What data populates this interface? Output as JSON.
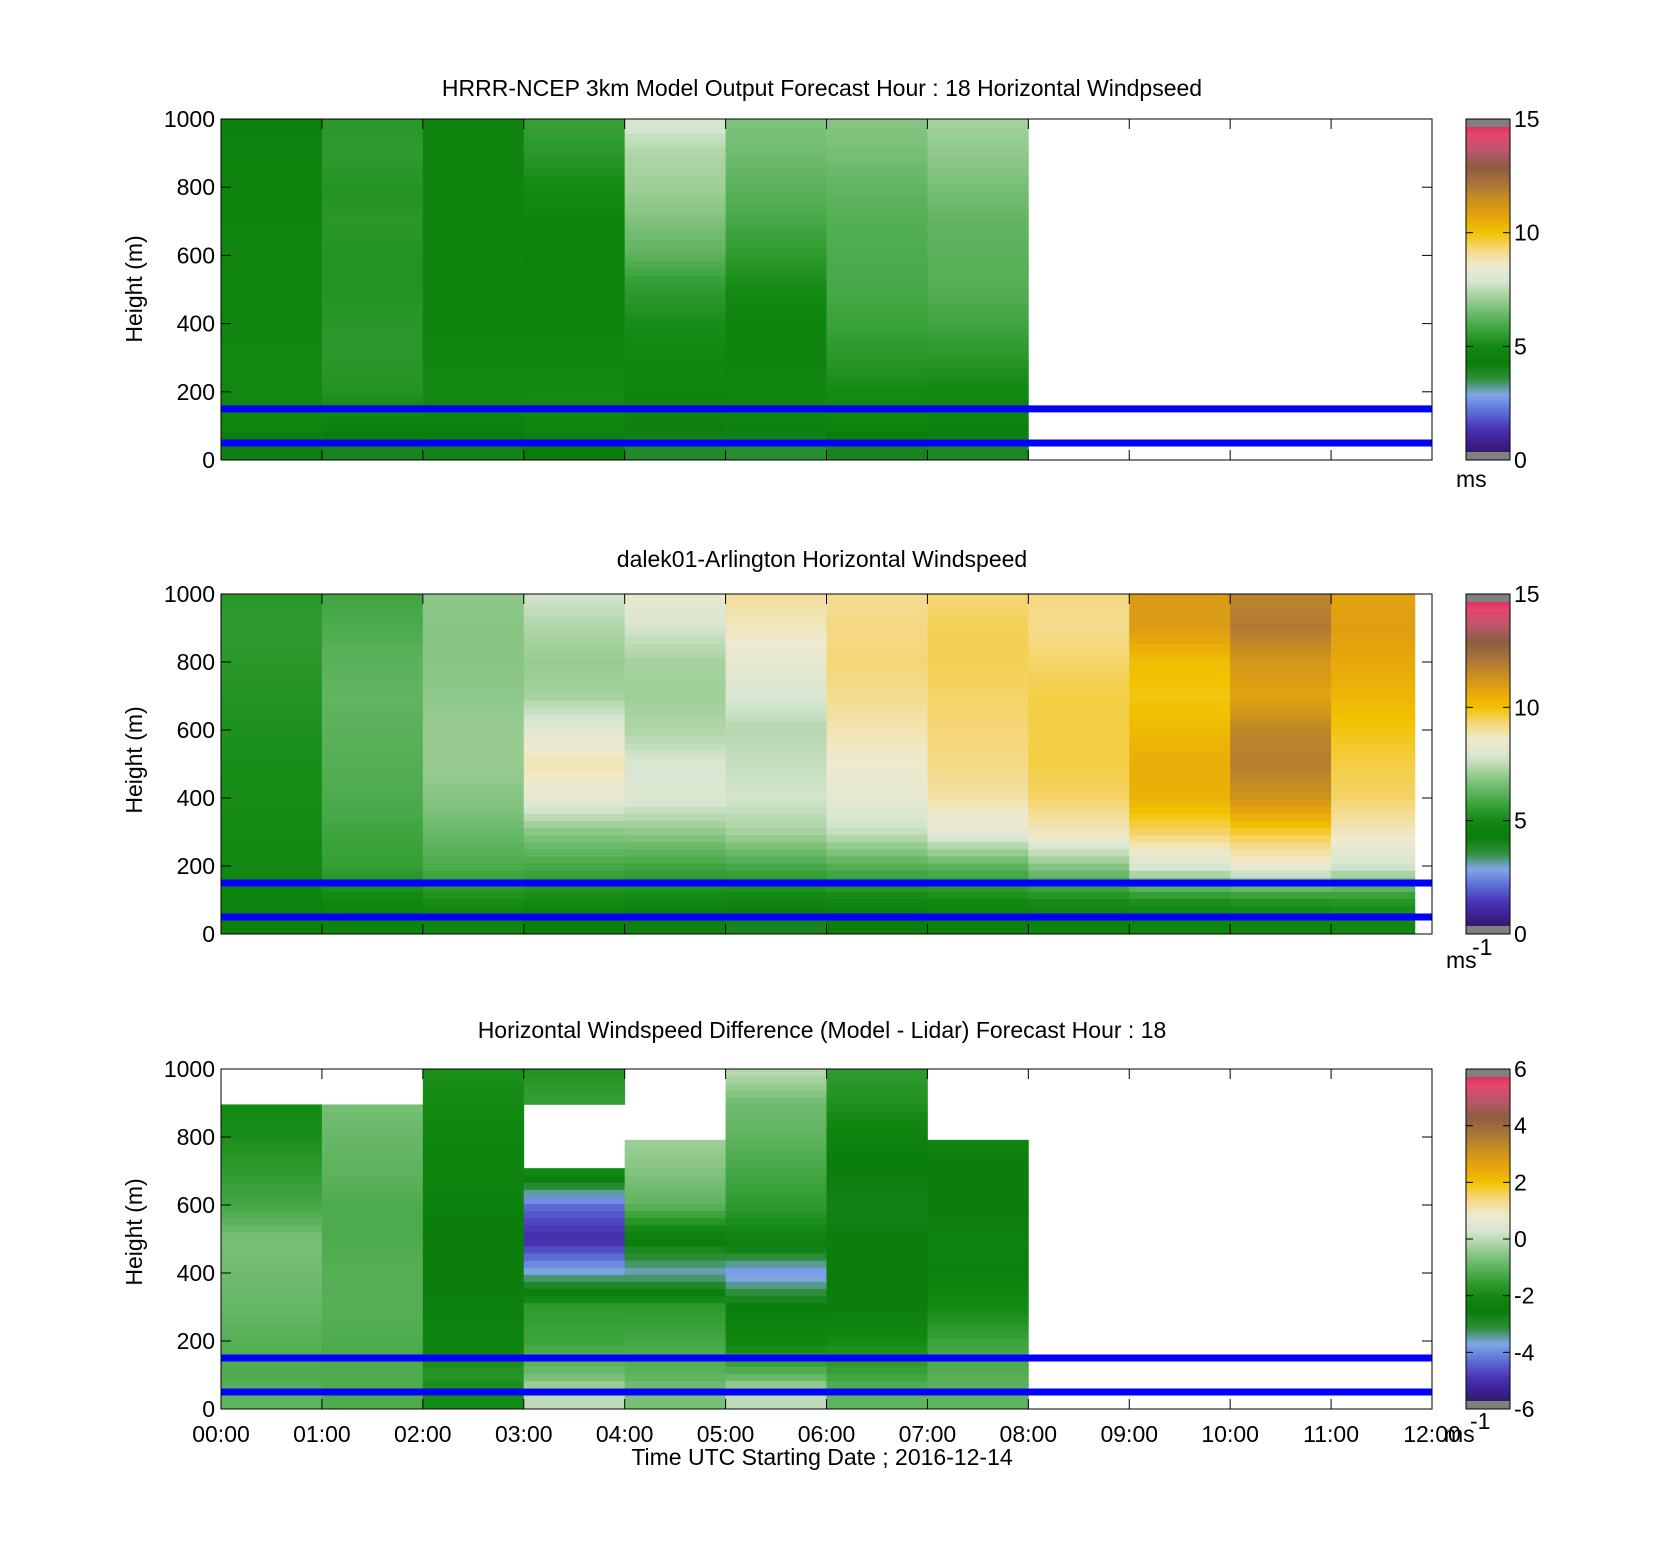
{
  "colors": {
    "ref_line": "#0000ff",
    "axis": "#000000",
    "no_data": "#ffffff"
  },
  "colormap_speed": [
    "#2a1b4a",
    "#3d1d8a",
    "#4a36b8",
    "#5c6fd6",
    "#7fa6e8",
    "#2f8f3a",
    "#0a7d0a",
    "#138a13",
    "#3aa23a",
    "#6ab96a",
    "#a2d09a",
    "#d8e6d3",
    "#efeacd",
    "#f5d77a",
    "#f2c200",
    "#e6a40d",
    "#c9901f",
    "#a9743a",
    "#8c5e3f",
    "#b8566a",
    "#e8456d",
    "#d31d52"
  ],
  "chart_data": [
    {
      "type": "heatmap",
      "title": "HRRR-NCEP 3km Model Output   Forecast Hour : 18 Horizontal Windpseed",
      "ylabel": "Height (m)",
      "xlabel": "",
      "x_range": [
        "00:00",
        "12:00"
      ],
      "ylim": [
        0,
        1000
      ],
      "yticks": [
        0,
        200,
        400,
        600,
        800,
        1000
      ],
      "xticks": [
        "00:00",
        "01:00",
        "02:00",
        "03:00",
        "04:00",
        "05:00",
        "06:00",
        "07:00",
        "08:00",
        "09:00",
        "10:00",
        "11:00",
        "12:00"
      ],
      "show_xticklabels": false,
      "colorbar": {
        "range": [
          0,
          15
        ],
        "ticks": [
          0,
          5,
          10,
          15
        ],
        "unit_label": "ms",
        "unit_sup": ""
      },
      "reference_lines_m": [
        50,
        150
      ],
      "data_hours": [
        0,
        8
      ],
      "height_levels_m": [
        50,
        100,
        200,
        300,
        400,
        500,
        600,
        700,
        800,
        900,
        1000
      ],
      "hourly_profiles": [
        [
          4.2,
          4.8,
          4.9,
          4.9,
          4.8,
          4.8,
          4.8,
          4.7,
          4.7,
          4.6,
          4.5
        ],
        [
          4.0,
          4.6,
          5.3,
          5.4,
          5.4,
          5.3,
          5.3,
          5.4,
          5.3,
          5.5,
          5.4
        ],
        [
          4.1,
          4.5,
          5.0,
          4.8,
          4.7,
          4.7,
          4.7,
          4.7,
          4.7,
          4.7,
          4.7
        ],
        [
          4.3,
          4.8,
          5.0,
          4.8,
          4.7,
          4.7,
          4.6,
          4.7,
          5.0,
          5.4,
          5.7
        ],
        [
          3.8,
          4.5,
          4.7,
          4.9,
          5.1,
          5.5,
          6.2,
          6.7,
          7.1,
          7.3,
          8.0
        ],
        [
          3.7,
          4.6,
          4.8,
          4.7,
          4.7,
          5.0,
          5.5,
          5.9,
          6.2,
          6.5,
          6.7
        ],
        [
          4.0,
          4.7,
          5.0,
          5.4,
          5.7,
          5.9,
          6.0,
          6.1,
          6.3,
          6.6,
          6.8
        ],
        [
          3.9,
          4.6,
          4.9,
          5.4,
          5.8,
          6.1,
          6.2,
          6.3,
          6.6,
          6.9,
          7.2
        ]
      ]
    },
    {
      "type": "heatmap",
      "title": "dalek01-Arlington  Horizontal Windspeed",
      "ylabel": "Height (m)",
      "xlabel": "",
      "x_range": [
        "00:00",
        "12:00"
      ],
      "ylim": [
        0,
        1000
      ],
      "yticks": [
        0,
        200,
        400,
        600,
        800,
        1000
      ],
      "xticks": [
        "00:00",
        "01:00",
        "02:00",
        "03:00",
        "04:00",
        "05:00",
        "06:00",
        "07:00",
        "08:00",
        "09:00",
        "10:00",
        "11:00",
        "12:00"
      ],
      "show_xticklabels": false,
      "colorbar": {
        "range": [
          0,
          15
        ],
        "ticks": [
          0,
          5,
          10,
          15
        ],
        "unit_label": "ms",
        "unit_sup": "-1"
      },
      "reference_lines_m": [
        50,
        150
      ],
      "data_hours": [
        0,
        11.83
      ],
      "height_levels_m": [
        50,
        100,
        200,
        300,
        400,
        500,
        600,
        700,
        800,
        900,
        1000
      ],
      "hourly_profiles": [
        [
          4.5,
          4.6,
          4.9,
          5.0,
          5.1,
          5.1,
          5.2,
          5.3,
          5.4,
          5.5,
          5.4
        ],
        [
          4.6,
          4.9,
          5.6,
          5.8,
          6.0,
          6.1,
          6.2,
          6.3,
          6.2,
          6.0,
          5.8
        ],
        [
          4.7,
          5.1,
          6.0,
          6.4,
          6.8,
          7.0,
          7.0,
          6.9,
          6.8,
          6.8,
          6.9
        ],
        [
          4.4,
          5.0,
          5.9,
          6.8,
          8.3,
          8.8,
          8.2,
          7.2,
          7.0,
          7.3,
          7.8
        ],
        [
          4.2,
          4.9,
          5.8,
          6.9,
          8.0,
          7.9,
          7.3,
          7.1,
          7.2,
          7.8,
          8.4
        ],
        [
          4.0,
          4.8,
          5.9,
          7.2,
          7.8,
          7.6,
          7.4,
          7.9,
          8.3,
          8.7,
          9.0
        ],
        [
          4.3,
          4.9,
          6.1,
          7.6,
          8.3,
          8.5,
          8.8,
          9.1,
          9.3,
          9.2,
          9.1
        ],
        [
          4.5,
          5.0,
          6.2,
          8.2,
          8.9,
          9.2,
          9.3,
          9.4,
          9.5,
          9.5,
          9.3
        ],
        [
          4.6,
          5.1,
          6.8,
          8.7,
          9.4,
          9.6,
          9.6,
          9.6,
          9.4,
          9.1,
          9.2
        ],
        [
          4.7,
          5.2,
          7.9,
          9.4,
          10.4,
          10.5,
          10.2,
          9.9,
          10.1,
          11.0,
          11.0
        ],
        [
          4.8,
          5.3,
          8.4,
          9.7,
          11.3,
          11.9,
          11.7,
          10.8,
          11.2,
          12.0,
          11.7
        ],
        [
          4.9,
          5.4,
          7.8,
          8.7,
          9.4,
          9.6,
          9.9,
          10.3,
          10.6,
          10.9,
          10.8
        ]
      ]
    },
    {
      "type": "heatmap",
      "title": "Horizontal Windspeed Difference (Model - Lidar) Forecast Hour : 18",
      "ylabel": "Height (m)",
      "xlabel": "Time UTC  Starting Date ; 2016-12-14",
      "x_range": [
        "00:00",
        "12:00"
      ],
      "ylim": [
        0,
        1000
      ],
      "yticks": [
        0,
        200,
        400,
        600,
        800,
        1000
      ],
      "xticks": [
        "00:00",
        "01:00",
        "02:00",
        "03:00",
        "04:00",
        "05:00",
        "06:00",
        "07:00",
        "08:00",
        "09:00",
        "10:00",
        "11:00",
        "12:00"
      ],
      "show_xticklabels": true,
      "colorbar": {
        "range": [
          -6,
          6
        ],
        "ticks": [
          -6,
          -4,
          -2,
          0,
          2,
          4,
          6
        ],
        "unit_label": "ms",
        "unit_sup": "-1"
      },
      "reference_lines_m": [
        50,
        150
      ],
      "data_hours": [
        0,
        8
      ],
      "height_levels_m": [
        50,
        100,
        200,
        300,
        400,
        500,
        600,
        700,
        800,
        900,
        1000
      ],
      "hourly_profiles": [
        [
          -1.0,
          -1.2,
          -1.1,
          -0.9,
          -0.8,
          -0.7,
          -1.3,
          -1.6,
          -1.9,
          -2.0,
          null
        ],
        [
          -1.2,
          -1.2,
          -1.2,
          -1.1,
          -1.1,
          -1.2,
          -1.2,
          -1.0,
          -0.9,
          -0.7,
          null
        ],
        [
          -2.0,
          -1.7,
          -2.3,
          -2.4,
          -2.6,
          -2.6,
          -2.4,
          -2.3,
          -2.2,
          -2.0,
          -1.9
        ],
        [
          0.0,
          -0.8,
          -1.4,
          -1.6,
          -3.6,
          -5.1,
          -4.3,
          -2.0,
          null,
          -1.5,
          -1.8
        ],
        [
          -0.7,
          -1.0,
          -1.3,
          -1.6,
          -3.6,
          -2.5,
          -1.0,
          -0.6,
          -0.3,
          null,
          null
        ],
        [
          0.0,
          -1.0,
          -2.2,
          -2.5,
          -3.9,
          -2.2,
          -1.6,
          -1.3,
          -1.0,
          -0.8,
          0.0
        ],
        [
          -1.0,
          -1.4,
          -2.0,
          -2.5,
          -2.6,
          -2.6,
          -2.7,
          -2.6,
          -2.3,
          -1.8,
          -1.6
        ],
        [
          -1.0,
          -1.1,
          -1.4,
          -2.0,
          -2.4,
          -2.3,
          -2.6,
          -2.6,
          -2.2,
          null,
          null
        ]
      ]
    }
  ]
}
